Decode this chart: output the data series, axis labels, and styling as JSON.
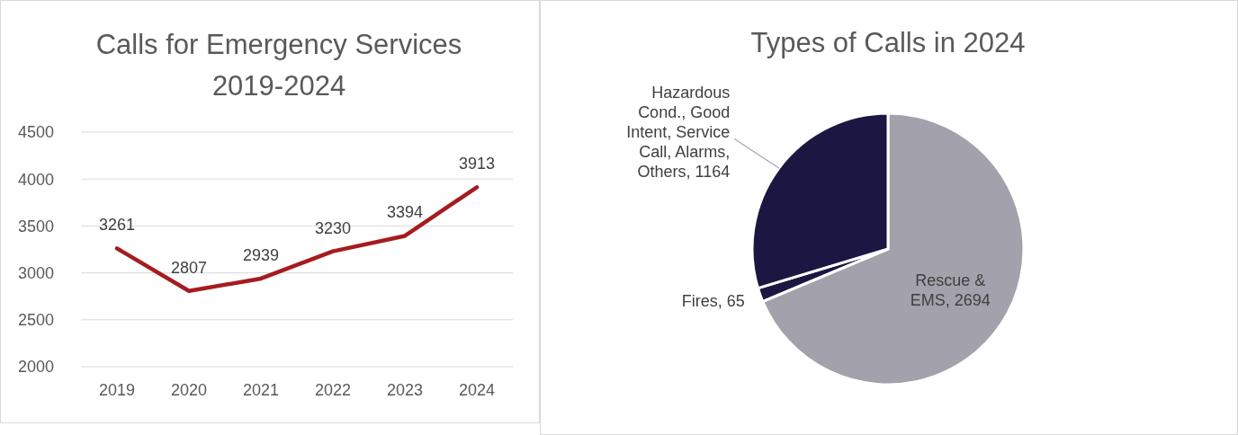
{
  "chart_data": [
    {
      "type": "line",
      "title": "Calls for Emergency Services 2019-2024",
      "categories": [
        "2019",
        "2020",
        "2021",
        "2022",
        "2023",
        "2024"
      ],
      "values": [
        3261,
        2807,
        2939,
        3230,
        3394,
        3913
      ],
      "color": "#a51c20",
      "ylim": [
        2000,
        4500
      ],
      "yticks": [
        2000,
        2500,
        3000,
        3500,
        4000,
        4500
      ],
      "grid": "y",
      "data_labels": true,
      "marker": "none"
    },
    {
      "type": "pie",
      "title": "Types of Calls in 2024",
      "categories": [
        "Rescue & EMS",
        "Fires",
        "Hazardous Cond., Good Intent, Service Call, Alarms, Others"
      ],
      "values": [
        2694,
        65,
        1164
      ],
      "colors": [
        "#a3a1ab",
        "#1b1642",
        "#1b1642"
      ],
      "value_labels": [
        ", 2694",
        ", 65",
        ", 1164"
      ]
    }
  ]
}
